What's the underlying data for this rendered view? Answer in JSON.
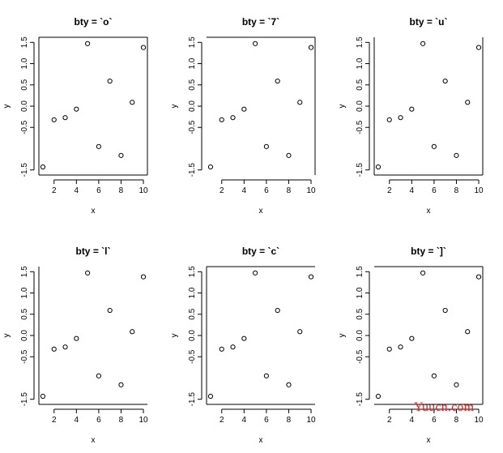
{
  "chart_data": [
    {
      "type": "scatter",
      "title": "bty = `o`",
      "box": "o",
      "xlabel": "x",
      "ylabel": "y",
      "xlim": [
        1,
        10
      ],
      "ylim": [
        -1.5,
        1.5
      ],
      "xticks": [
        "2",
        "4",
        "6",
        "8",
        "10"
      ],
      "yticks": [
        "-1.5",
        "-0.5",
        "0.0",
        "0.5",
        "1.0",
        "1.5"
      ],
      "x": [
        1,
        2,
        3,
        4,
        5,
        6,
        7,
        8,
        9,
        10
      ],
      "y": [
        -1.43,
        -0.32,
        -0.27,
        -0.07,
        1.47,
        -0.95,
        0.59,
        -1.16,
        0.09,
        1.38
      ]
    },
    {
      "type": "scatter",
      "title": "bty = `7`",
      "box": "7",
      "xlabel": "x",
      "ylabel": "y",
      "xlim": [
        1,
        10
      ],
      "ylim": [
        -1.5,
        1.5
      ],
      "xticks": [
        "2",
        "4",
        "6",
        "8",
        "10"
      ],
      "yticks": [
        "-1.5",
        "-0.5",
        "0.0",
        "0.5",
        "1.0",
        "1.5"
      ],
      "x": [
        1,
        2,
        3,
        4,
        5,
        6,
        7,
        8,
        9,
        10
      ],
      "y": [
        -1.43,
        -0.32,
        -0.27,
        -0.07,
        1.47,
        -0.95,
        0.59,
        -1.16,
        0.09,
        1.38
      ]
    },
    {
      "type": "scatter",
      "title": "bty = `u`",
      "box": "u",
      "xlabel": "x",
      "ylabel": "y",
      "xlim": [
        1,
        10
      ],
      "ylim": [
        -1.5,
        1.5
      ],
      "xticks": [
        "2",
        "4",
        "6",
        "8",
        "10"
      ],
      "yticks": [
        "-1.5",
        "-0.5",
        "0.0",
        "0.5",
        "1.0",
        "1.5"
      ],
      "x": [
        1,
        2,
        3,
        4,
        5,
        6,
        7,
        8,
        9,
        10
      ],
      "y": [
        -1.43,
        -0.32,
        -0.27,
        -0.07,
        1.47,
        -0.95,
        0.59,
        -1.16,
        0.09,
        1.38
      ]
    },
    {
      "type": "scatter",
      "title": "bty = `l`",
      "box": "l",
      "xlabel": "x",
      "ylabel": "y",
      "xlim": [
        1,
        10
      ],
      "ylim": [
        -1.5,
        1.5
      ],
      "xticks": [
        "2",
        "4",
        "6",
        "8",
        "10"
      ],
      "yticks": [
        "-1.5",
        "-0.5",
        "0.0",
        "0.5",
        "1.0",
        "1.5"
      ],
      "x": [
        1,
        2,
        3,
        4,
        5,
        6,
        7,
        8,
        9,
        10
      ],
      "y": [
        -1.43,
        -0.32,
        -0.27,
        -0.07,
        1.47,
        -0.95,
        0.59,
        -1.16,
        0.09,
        1.38
      ]
    },
    {
      "type": "scatter",
      "title": "bty = `c`",
      "box": "c",
      "xlabel": "x",
      "ylabel": "y",
      "xlim": [
        1,
        10
      ],
      "ylim": [
        -1.5,
        1.5
      ],
      "xticks": [
        "2",
        "4",
        "6",
        "8",
        "10"
      ],
      "yticks": [
        "-1.5",
        "-0.5",
        "0.0",
        "0.5",
        "1.0",
        "1.5"
      ],
      "x": [
        1,
        2,
        3,
        4,
        5,
        6,
        7,
        8,
        9,
        10
      ],
      "y": [
        -1.43,
        -0.32,
        -0.27,
        -0.07,
        1.47,
        -0.95,
        0.59,
        -1.16,
        0.09,
        1.38
      ]
    },
    {
      "type": "scatter",
      "title": "bty = `]`",
      "box": "]",
      "xlabel": "x",
      "ylabel": "y",
      "xlim": [
        1,
        10
      ],
      "ylim": [
        -1.5,
        1.5
      ],
      "xticks": [
        "2",
        "4",
        "6",
        "8",
        "10"
      ],
      "yticks": [
        "-1.5",
        "-0.5",
        "0.0",
        "0.5",
        "1.0",
        "1.5"
      ],
      "x": [
        1,
        2,
        3,
        4,
        5,
        6,
        7,
        8,
        9,
        10
      ],
      "y": [
        -1.43,
        -0.32,
        -0.27,
        -0.07,
        1.47,
        -0.95,
        0.59,
        -1.16,
        0.09,
        1.38
      ]
    }
  ],
  "watermark": {
    "text": "Yuucn.com",
    "color": "#e0211d"
  }
}
